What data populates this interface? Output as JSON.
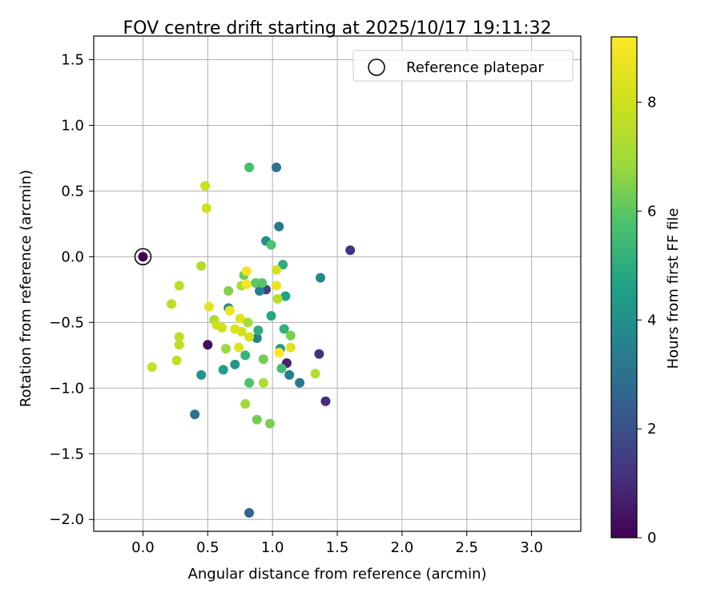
{
  "chart_data": {
    "type": "scatter",
    "title": "FOV centre drift starting at 2025/10/17 19:11:32",
    "xlabel": "Angular distance from reference (arcmin)",
    "ylabel": "Rotation from reference (arcmin)",
    "xlim": [
      -0.38,
      3.38
    ],
    "ylim": [
      -2.09,
      1.68
    ],
    "xticks": [
      0.0,
      0.5,
      1.0,
      1.5,
      2.0,
      2.5,
      3.0
    ],
    "xtick_labels": [
      "0.0",
      "0.5",
      "1.0",
      "1.5",
      "2.0",
      "2.5",
      "3.0"
    ],
    "yticks": [
      1.5,
      1.0,
      0.5,
      0.0,
      -0.5,
      -1.0,
      -1.5,
      -2.0
    ],
    "ytick_labels": [
      "1.5",
      "1.0",
      "0.5",
      "0.0",
      "−0.5",
      "−1.0",
      "−1.5",
      "−2.0"
    ],
    "grid": true,
    "legend": {
      "position": "top-right",
      "label": "Reference platepar"
    },
    "reference_point": {
      "x": 0.0,
      "y": 0.0,
      "c": 0.0
    },
    "colorbar": {
      "label": "Hours from first FF file",
      "range": [
        0,
        9.2
      ],
      "ticks": [
        0,
        2,
        4,
        6,
        8
      ],
      "tick_labels": [
        "0",
        "2",
        "4",
        "6",
        "8"
      ],
      "colormap": "viridis"
    },
    "points": [
      {
        "x": 0.0,
        "y": 0.0,
        "c": 0.0
      },
      {
        "x": 1.6,
        "y": 0.05,
        "c": 1.2
      },
      {
        "x": 0.5,
        "y": -0.67,
        "c": 0.3
      },
      {
        "x": 1.11,
        "y": -0.81,
        "c": 0.8
      },
      {
        "x": 1.41,
        "y": -1.1,
        "c": 1.0
      },
      {
        "x": 1.36,
        "y": -0.74,
        "c": 1.2
      },
      {
        "x": 0.95,
        "y": -0.25,
        "c": 1.6
      },
      {
        "x": 0.82,
        "y": -1.95,
        "c": 2.6
      },
      {
        "x": 0.4,
        "y": -1.2,
        "c": 3.0
      },
      {
        "x": 1.03,
        "y": 0.68,
        "c": 3.0
      },
      {
        "x": 1.05,
        "y": 0.23,
        "c": 3.2
      },
      {
        "x": 1.21,
        "y": -0.96,
        "c": 3.2
      },
      {
        "x": 1.13,
        "y": -0.9,
        "c": 3.4
      },
      {
        "x": 0.9,
        "y": -0.26,
        "c": 3.5
      },
      {
        "x": 0.88,
        "y": -0.62,
        "c": 3.6
      },
      {
        "x": 0.66,
        "y": -0.39,
        "c": 3.8
      },
      {
        "x": 1.37,
        "y": -0.16,
        "c": 3.8
      },
      {
        "x": 0.95,
        "y": 0.12,
        "c": 4.0
      },
      {
        "x": 0.45,
        "y": -0.9,
        "c": 4.2
      },
      {
        "x": 0.71,
        "y": -0.82,
        "c": 4.2
      },
      {
        "x": 0.62,
        "y": -0.86,
        "c": 4.5
      },
      {
        "x": 1.06,
        "y": -0.7,
        "c": 4.5
      },
      {
        "x": 1.1,
        "y": -0.3,
        "c": 4.6
      },
      {
        "x": 0.99,
        "y": -0.45,
        "c": 4.8
      },
      {
        "x": 1.08,
        "y": -0.06,
        "c": 5.0
      },
      {
        "x": 0.89,
        "y": -0.56,
        "c": 5.0
      },
      {
        "x": 1.09,
        "y": -0.55,
        "c": 5.2
      },
      {
        "x": 0.79,
        "y": -0.75,
        "c": 5.3
      },
      {
        "x": 0.82,
        "y": 0.68,
        "c": 5.6
      },
      {
        "x": 1.07,
        "y": -0.85,
        "c": 5.6
      },
      {
        "x": 0.99,
        "y": 0.09,
        "c": 5.8
      },
      {
        "x": 0.82,
        "y": -0.96,
        "c": 5.8
      },
      {
        "x": 0.92,
        "y": -0.2,
        "c": 5.9
      },
      {
        "x": 0.87,
        "y": -0.2,
        "c": 6.0
      },
      {
        "x": 0.78,
        "y": -0.14,
        "c": 6.2
      },
      {
        "x": 0.93,
        "y": -0.78,
        "c": 6.3
      },
      {
        "x": 0.88,
        "y": -1.24,
        "c": 6.3
      },
      {
        "x": 0.98,
        "y": -1.27,
        "c": 6.4
      },
      {
        "x": 1.14,
        "y": -0.6,
        "c": 6.4
      },
      {
        "x": 0.66,
        "y": -0.26,
        "c": 6.5
      },
      {
        "x": 0.64,
        "y": -0.7,
        "c": 6.8
      },
      {
        "x": 0.79,
        "y": -1.12,
        "c": 6.9
      },
      {
        "x": 0.81,
        "y": -0.5,
        "c": 7.0
      },
      {
        "x": 0.76,
        "y": -0.22,
        "c": 7.2
      },
      {
        "x": 0.55,
        "y": -0.48,
        "c": 7.2
      },
      {
        "x": 0.93,
        "y": -0.96,
        "c": 7.3
      },
      {
        "x": 1.33,
        "y": -0.89,
        "c": 7.4
      },
      {
        "x": 0.45,
        "y": -0.07,
        "c": 7.4
      },
      {
        "x": 1.04,
        "y": -0.32,
        "c": 7.5
      },
      {
        "x": 0.28,
        "y": -0.22,
        "c": 7.5
      },
      {
        "x": 0.22,
        "y": -0.36,
        "c": 7.6
      },
      {
        "x": 0.28,
        "y": -0.61,
        "c": 7.6
      },
      {
        "x": 0.28,
        "y": -0.67,
        "c": 7.6
      },
      {
        "x": 0.26,
        "y": -0.79,
        "c": 7.7
      },
      {
        "x": 0.07,
        "y": -0.84,
        "c": 7.8
      },
      {
        "x": 0.48,
        "y": 0.54,
        "c": 7.9
      },
      {
        "x": 0.49,
        "y": 0.37,
        "c": 8.0
      },
      {
        "x": 0.57,
        "y": -0.52,
        "c": 8.0
      },
      {
        "x": 0.61,
        "y": -0.54,
        "c": 8.0
      },
      {
        "x": 0.76,
        "y": -0.57,
        "c": 8.1
      },
      {
        "x": 0.82,
        "y": -0.61,
        "c": 8.2
      },
      {
        "x": 1.03,
        "y": -0.1,
        "c": 8.2
      },
      {
        "x": 0.71,
        "y": -0.55,
        "c": 8.3
      },
      {
        "x": 0.74,
        "y": -0.69,
        "c": 8.4
      },
      {
        "x": 0.75,
        "y": -0.47,
        "c": 8.5
      },
      {
        "x": 1.14,
        "y": -0.69,
        "c": 8.5
      },
      {
        "x": 0.51,
        "y": -0.38,
        "c": 8.6
      },
      {
        "x": 1.03,
        "y": -0.22,
        "c": 8.7
      },
      {
        "x": 0.67,
        "y": -0.41,
        "c": 8.8
      },
      {
        "x": 0.8,
        "y": -0.11,
        "c": 8.9
      },
      {
        "x": 0.8,
        "y": -0.21,
        "c": 9.0
      },
      {
        "x": 1.05,
        "y": -0.73,
        "c": 9.2
      }
    ]
  }
}
